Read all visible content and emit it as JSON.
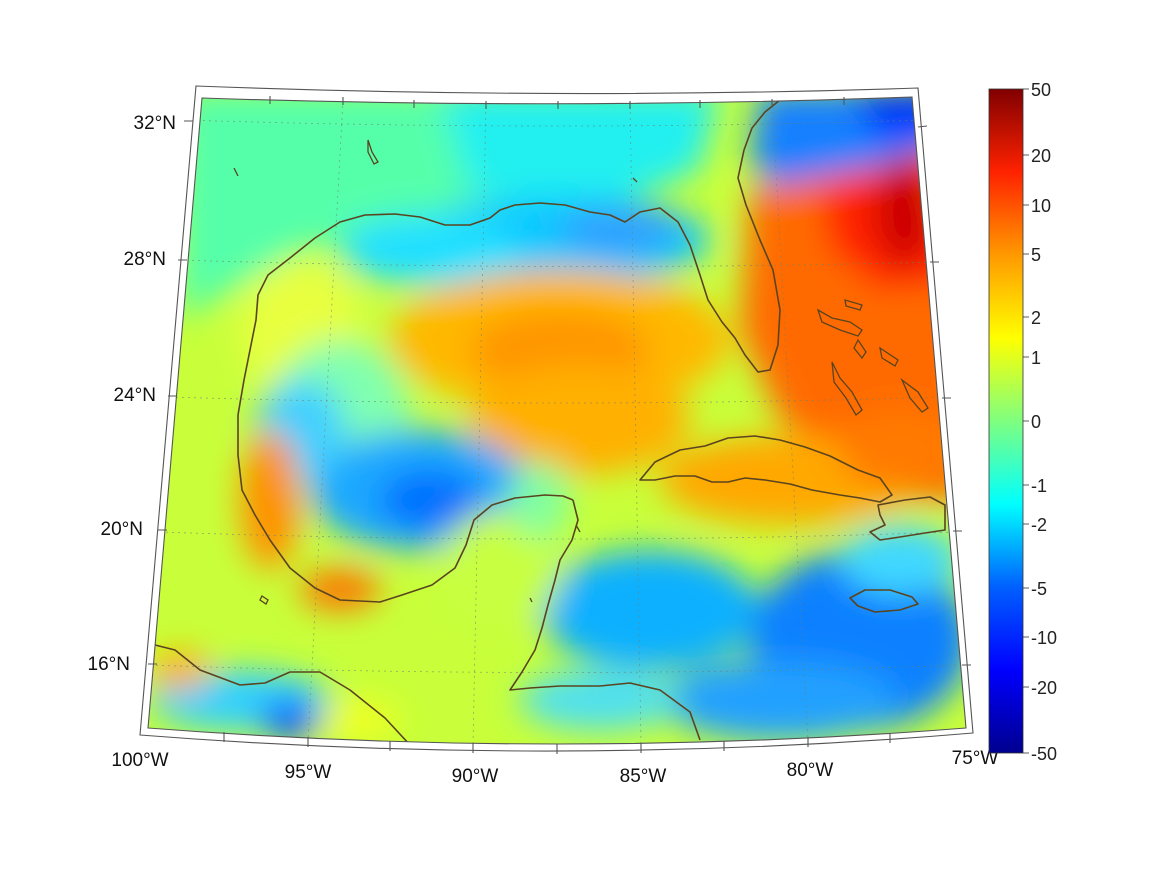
{
  "map": {
    "region": "Gulf of Mexico and Caribbean",
    "lat_labels": [
      "32°N",
      "28°N",
      "24°N",
      "20°N",
      "16°N"
    ],
    "lon_labels": [
      "100°W",
      "95°W",
      "90°W",
      "85°W",
      "80°W",
      "75°W"
    ],
    "lat_range": [
      14,
      32.5
    ],
    "lon_range": [
      -100,
      -75
    ]
  },
  "colorbar": {
    "tick_labels": [
      "50",
      "20",
      "10",
      "5",
      "2",
      "1",
      "0",
      "-1",
      "-2",
      "-5",
      "-10",
      "-20",
      "-50"
    ],
    "colormap": "jet",
    "colors": {
      "max": "#800000",
      "high": "#ff2a00",
      "mid_high": "#ff9900",
      "middle_upper": "#ffff00",
      "middle": "#7fff7f",
      "middle_lower": "#00ffff",
      "mid_low": "#0099ff",
      "low": "#0020ff",
      "min": "#00008f"
    }
  },
  "styles": {
    "coastline_color": "#5a4420",
    "frame_color": "#555555"
  }
}
